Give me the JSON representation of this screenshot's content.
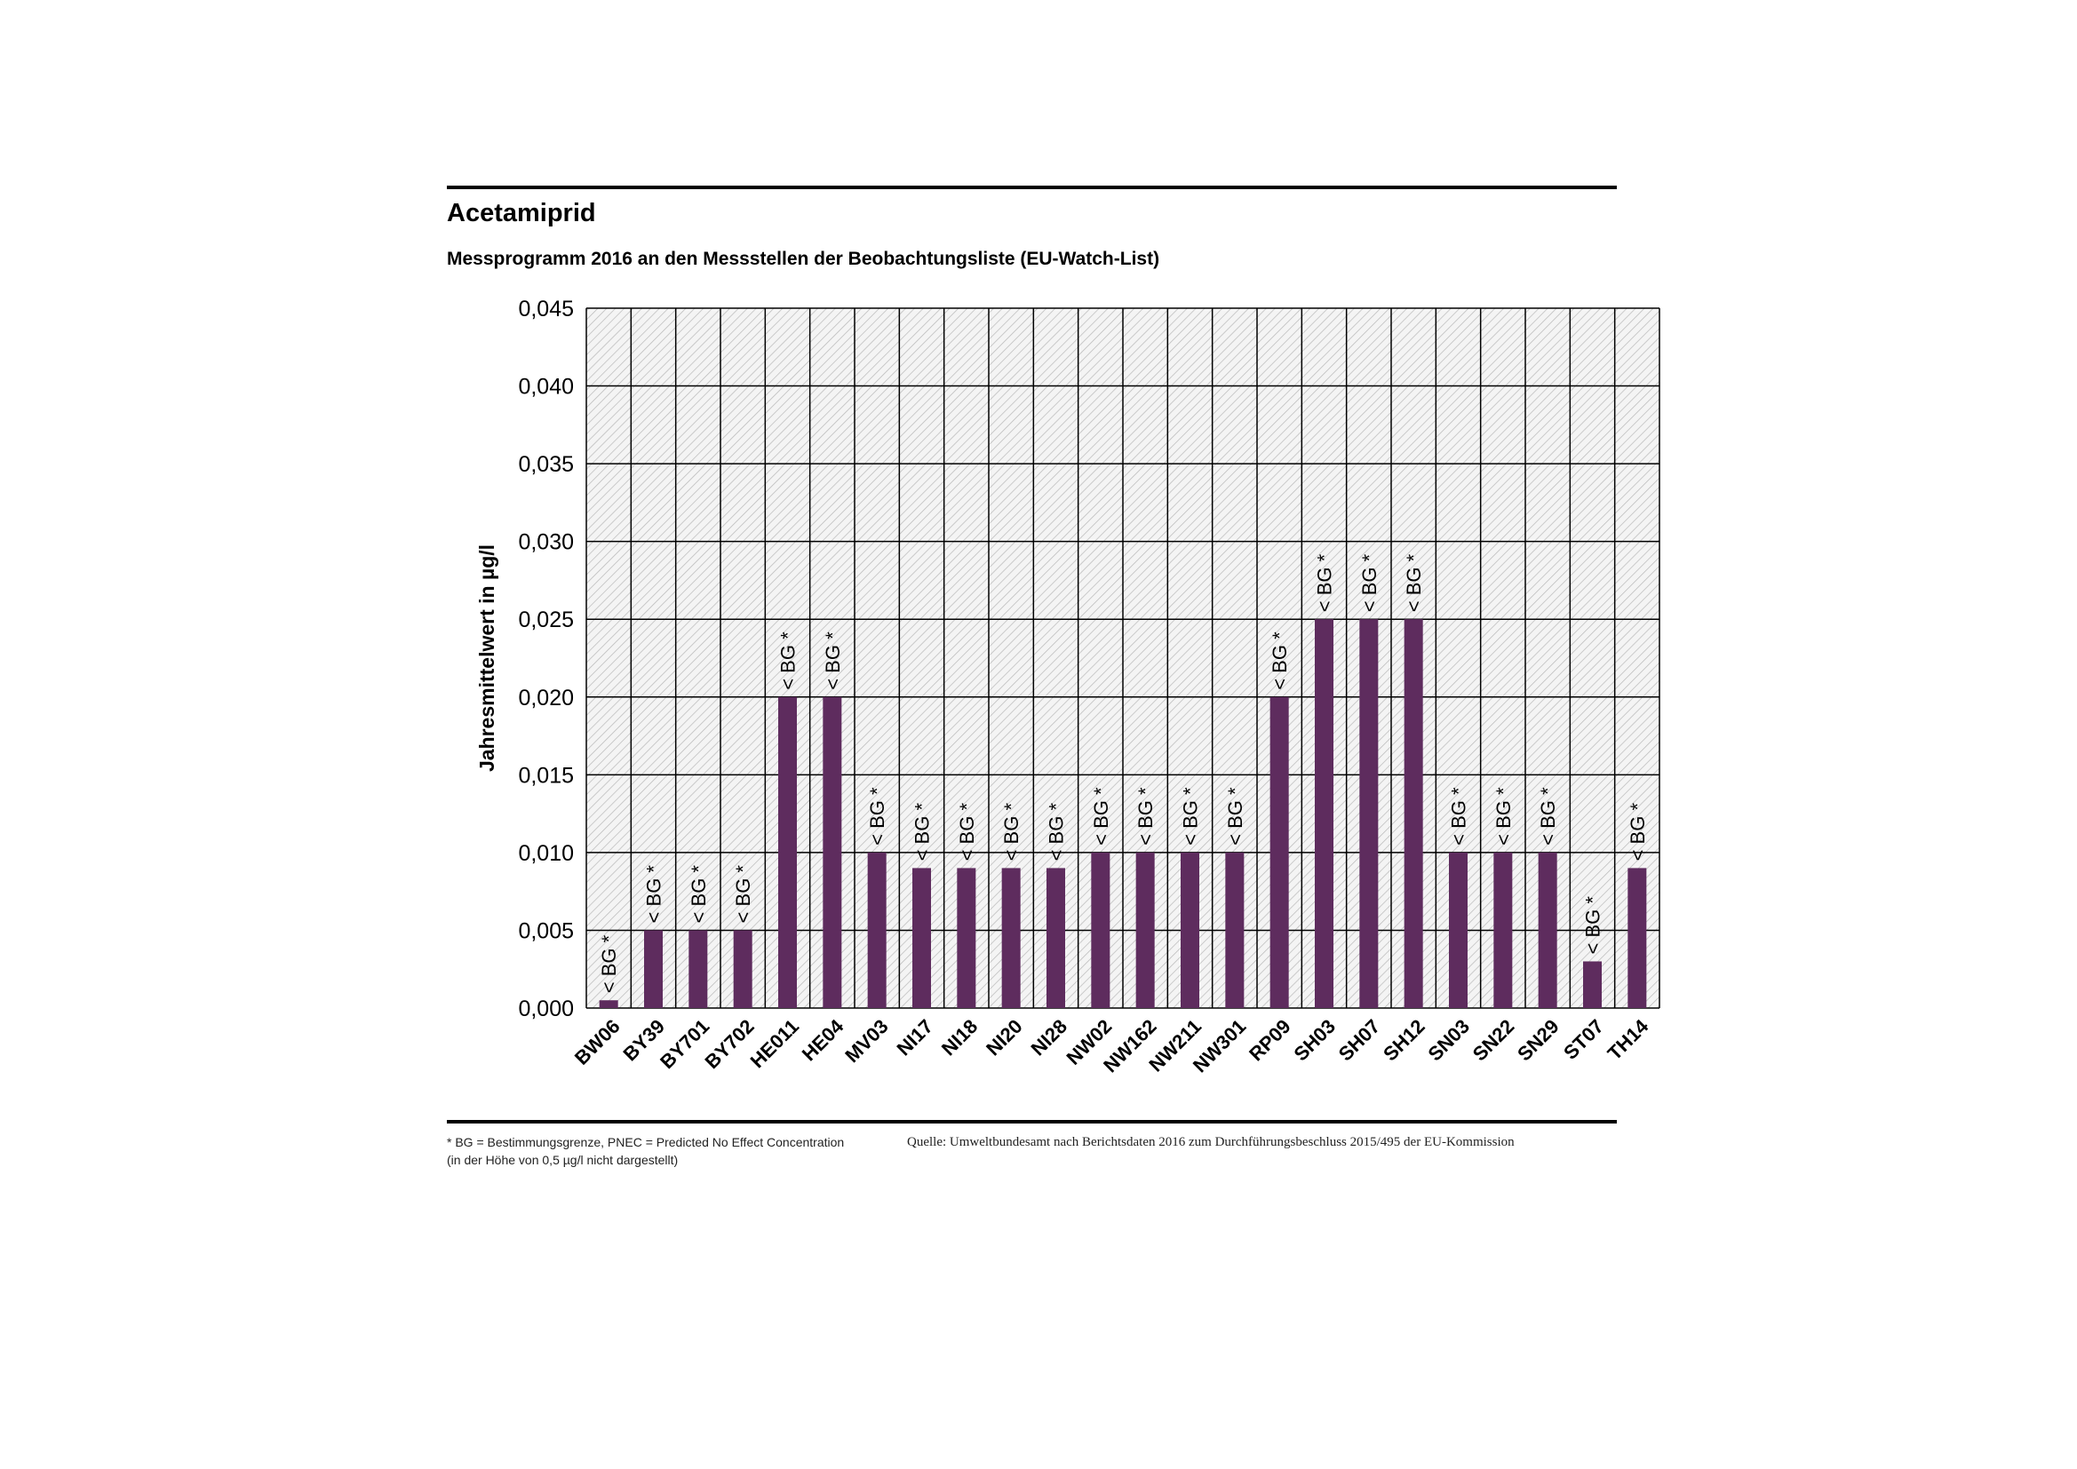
{
  "title": "Acetamiprid",
  "subtitle": "Messprogramm 2016 an den Messstellen der Beobachtungsliste (EU-Watch-List)",
  "footnote": {
    "line1": "* BG = Bestimmungsgrenze, PNEC = Predicted No Effect Concentration",
    "line2": "(in der Höhe von 0,5 µg/l nicht dargestellt)",
    "source": "Quelle: Umweltbundesamt nach Berichtsdaten 2016 zum Durchführungsbeschluss 2015/495 der EU-Kommission"
  },
  "chart_data": {
    "type": "bar",
    "title": "Acetamiprid",
    "ylabel": "Jahresmittelwert in µg/l",
    "xlabel": "",
    "ylim": [
      0,
      0.045
    ],
    "yticks": [
      "0,000",
      "0,005",
      "0,010",
      "0,015",
      "0,020",
      "0,025",
      "0,030",
      "0,035",
      "0,040",
      "0,045"
    ],
    "grid": true,
    "bar_color": "#5E2C5E",
    "categories": [
      "BW06",
      "BY39",
      "BY701",
      "BY702",
      "HE011",
      "HE04",
      "MV03",
      "NI17",
      "NI18",
      "NI20",
      "NI28",
      "NW02",
      "NW162",
      "NW211",
      "NW301",
      "RP09",
      "SH03",
      "SH07",
      "SH12",
      "SN03",
      "SN22",
      "SN29",
      "ST07",
      "TH14"
    ],
    "values": [
      0.0005,
      0.005,
      0.005,
      0.005,
      0.02,
      0.02,
      0.01,
      0.009,
      0.009,
      0.009,
      0.009,
      0.01,
      0.01,
      0.01,
      0.01,
      0.02,
      0.025,
      0.025,
      0.025,
      0.01,
      0.01,
      0.01,
      0.003,
      0.009
    ],
    "bar_label": "< BG *"
  }
}
